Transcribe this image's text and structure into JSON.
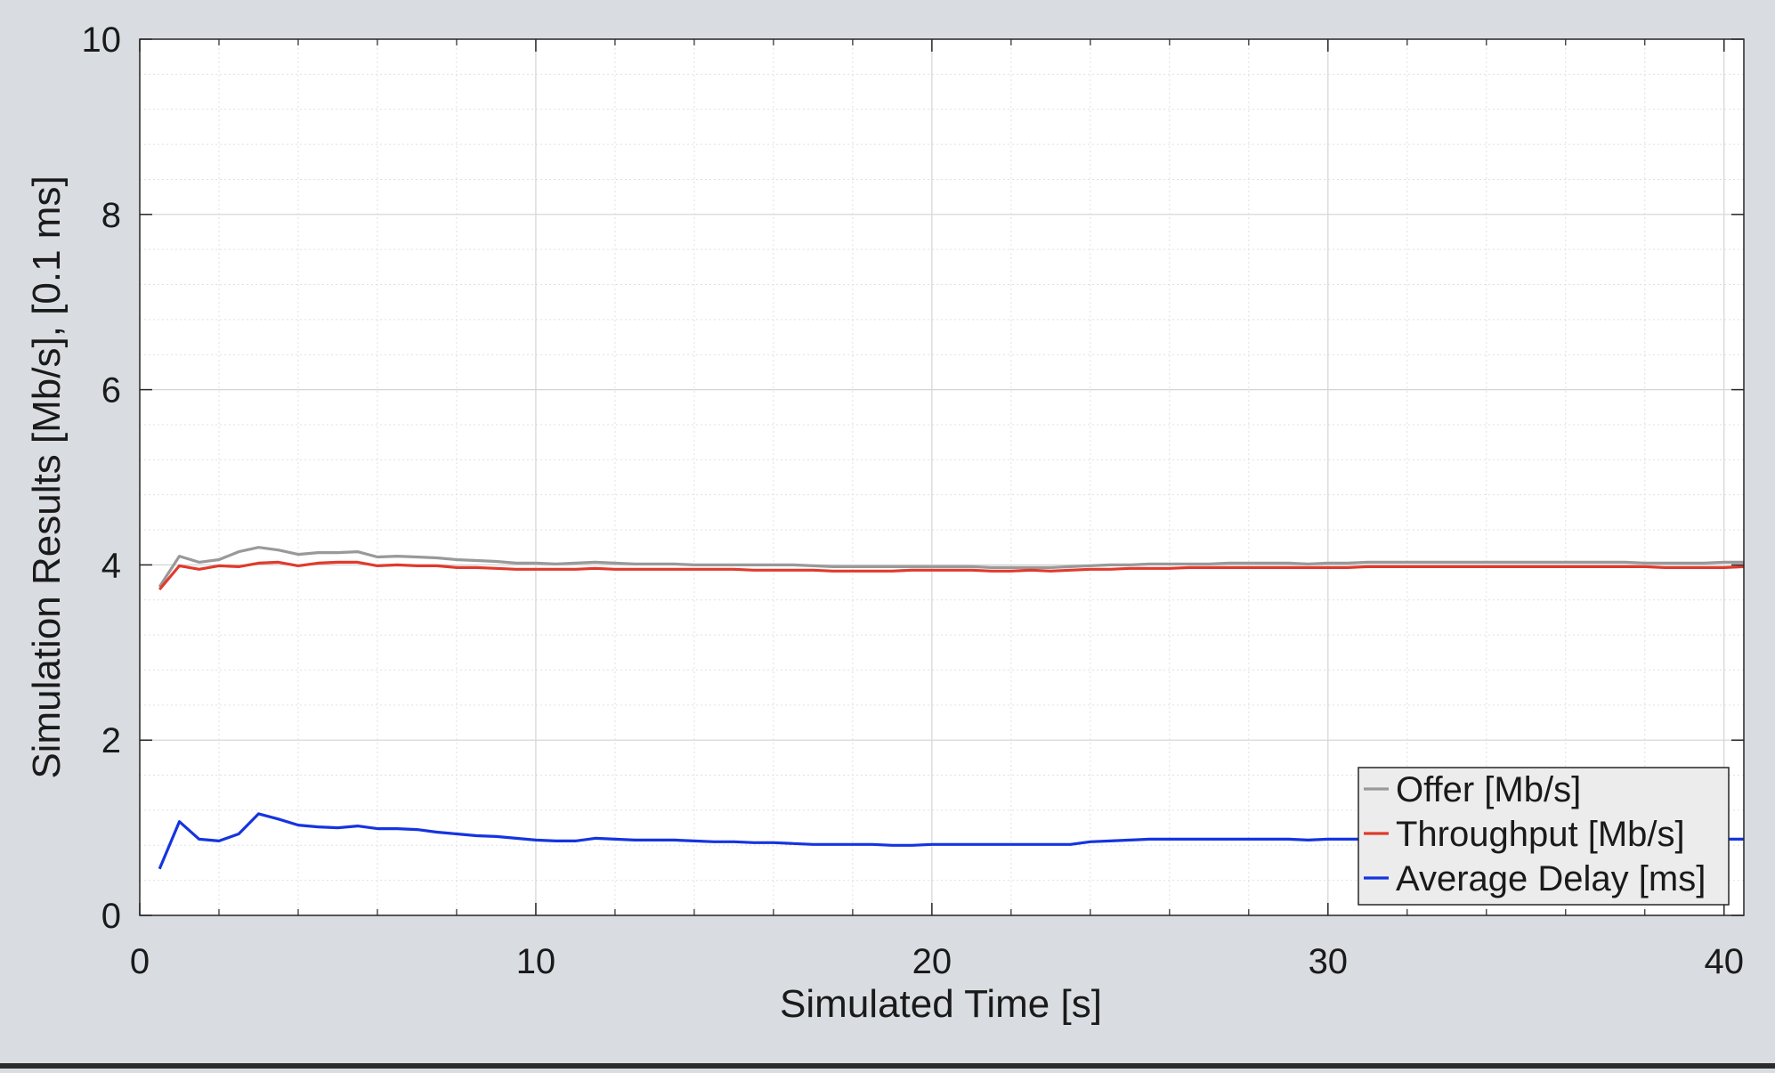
{
  "chart_data": {
    "type": "line",
    "xlabel": "Simulated Time [s]",
    "ylabel": "Simulation Results [Mb/s], [0.1 ms]",
    "xlim": [
      0,
      40.5
    ],
    "ylim": [
      0,
      10
    ],
    "xticks": [
      0,
      10,
      20,
      30,
      40
    ],
    "yticks": [
      0,
      2,
      4,
      6,
      8,
      10
    ],
    "grid": true,
    "legend_position": "bottom-right",
    "x": [
      0.5,
      1,
      1.5,
      2,
      2.5,
      3,
      3.5,
      4,
      4.5,
      5,
      5.5,
      6,
      6.5,
      7,
      7.5,
      8,
      8.5,
      9,
      9.5,
      10,
      10.5,
      11,
      11.5,
      12,
      12.5,
      13,
      13.5,
      14,
      14.5,
      15,
      15.5,
      16,
      16.5,
      17,
      17.5,
      18,
      18.5,
      19,
      19.5,
      20,
      20.5,
      21,
      21.5,
      22,
      22.5,
      23,
      23.5,
      24,
      24.5,
      25,
      25.5,
      26,
      26.5,
      27,
      27.5,
      28,
      28.5,
      29,
      29.5,
      30,
      30.5,
      31,
      31.5,
      32,
      32.5,
      33,
      33.5,
      34,
      34.5,
      35,
      35.5,
      36,
      36.5,
      37,
      37.5,
      38,
      38.5,
      39,
      39.5,
      40,
      40.5
    ],
    "series": [
      {
        "name": "Offer [Mb/s]",
        "color": "#999999",
        "values": [
          3.75,
          4.1,
          4.03,
          4.06,
          4.15,
          4.2,
          4.17,
          4.12,
          4.14,
          4.14,
          4.15,
          4.09,
          4.1,
          4.09,
          4.08,
          4.06,
          4.05,
          4.04,
          4.02,
          4.02,
          4.01,
          4.02,
          4.03,
          4.02,
          4.01,
          4.01,
          4.01,
          4.0,
          4.0,
          4.0,
          4.0,
          4.0,
          4.0,
          3.99,
          3.98,
          3.98,
          3.98,
          3.98,
          3.98,
          3.98,
          3.98,
          3.98,
          3.97,
          3.97,
          3.97,
          3.97,
          3.98,
          3.99,
          4.0,
          4.0,
          4.01,
          4.01,
          4.01,
          4.01,
          4.02,
          4.02,
          4.02,
          4.02,
          4.01,
          4.02,
          4.02,
          4.03,
          4.03,
          4.03,
          4.03,
          4.03,
          4.03,
          4.03,
          4.03,
          4.03,
          4.03,
          4.03,
          4.03,
          4.03,
          4.03,
          4.02,
          4.02,
          4.02,
          4.02,
          4.03,
          4.03
        ]
      },
      {
        "name": "Throughput [Mb/s]",
        "color": "#e03a2c",
        "values": [
          3.72,
          3.99,
          3.95,
          3.99,
          3.98,
          4.02,
          4.03,
          3.99,
          4.02,
          4.03,
          4.03,
          3.99,
          4.0,
          3.99,
          3.99,
          3.97,
          3.97,
          3.96,
          3.95,
          3.95,
          3.95,
          3.95,
          3.96,
          3.95,
          3.95,
          3.95,
          3.95,
          3.95,
          3.95,
          3.95,
          3.94,
          3.94,
          3.94,
          3.94,
          3.93,
          3.93,
          3.93,
          3.93,
          3.94,
          3.94,
          3.94,
          3.94,
          3.93,
          3.93,
          3.94,
          3.93,
          3.94,
          3.95,
          3.95,
          3.96,
          3.96,
          3.96,
          3.97,
          3.97,
          3.97,
          3.97,
          3.97,
          3.97,
          3.97,
          3.97,
          3.97,
          3.98,
          3.98,
          3.98,
          3.98,
          3.98,
          3.98,
          3.98,
          3.98,
          3.98,
          3.98,
          3.98,
          3.98,
          3.98,
          3.98,
          3.98,
          3.97,
          3.97,
          3.97,
          3.97,
          3.98
        ]
      },
      {
        "name": "Average Delay [ms]",
        "color": "#1534e0",
        "values": [
          0.53,
          1.07,
          0.87,
          0.85,
          0.93,
          1.16,
          1.1,
          1.03,
          1.01,
          1.0,
          1.02,
          0.99,
          0.99,
          0.98,
          0.95,
          0.93,
          0.91,
          0.9,
          0.88,
          0.86,
          0.85,
          0.85,
          0.88,
          0.87,
          0.86,
          0.86,
          0.86,
          0.85,
          0.84,
          0.84,
          0.83,
          0.83,
          0.82,
          0.81,
          0.81,
          0.81,
          0.81,
          0.8,
          0.8,
          0.81,
          0.81,
          0.81,
          0.81,
          0.81,
          0.81,
          0.81,
          0.81,
          0.84,
          0.85,
          0.86,
          0.87,
          0.87,
          0.87,
          0.87,
          0.87,
          0.87,
          0.87,
          0.87,
          0.86,
          0.87,
          0.87,
          0.87,
          0.87,
          0.87,
          0.87,
          0.87,
          0.87,
          0.87,
          0.87,
          0.87,
          0.87,
          0.87,
          0.87,
          0.87,
          0.87,
          0.87,
          0.87,
          0.87,
          0.87,
          0.87,
          0.87
        ]
      }
    ]
  }
}
